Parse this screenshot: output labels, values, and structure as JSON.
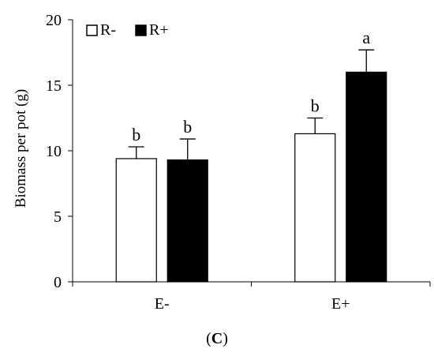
{
  "chart_data": {
    "type": "bar",
    "title": "",
    "xlabel": "",
    "ylabel": "Biomass per pot (g)",
    "ylim": [
      0,
      20
    ],
    "yticks": [
      0,
      5,
      10,
      15,
      20
    ],
    "categories": [
      "E-",
      "E+"
    ],
    "series": [
      {
        "name": "R-",
        "fill": "#ffffff",
        "values": [
          9.4,
          11.3
        ],
        "errors": [
          0.9,
          1.2
        ],
        "sig_labels": [
          "b",
          "b"
        ]
      },
      {
        "name": "R+",
        "fill": "#000000",
        "values": [
          9.3,
          16.0
        ],
        "errors": [
          1.6,
          1.7
        ],
        "sig_labels": [
          "b",
          "a"
        ]
      }
    ],
    "legend_position": "top-left",
    "grid": false
  },
  "caption": {
    "open": "(",
    "letter": "C",
    "close": ")"
  }
}
